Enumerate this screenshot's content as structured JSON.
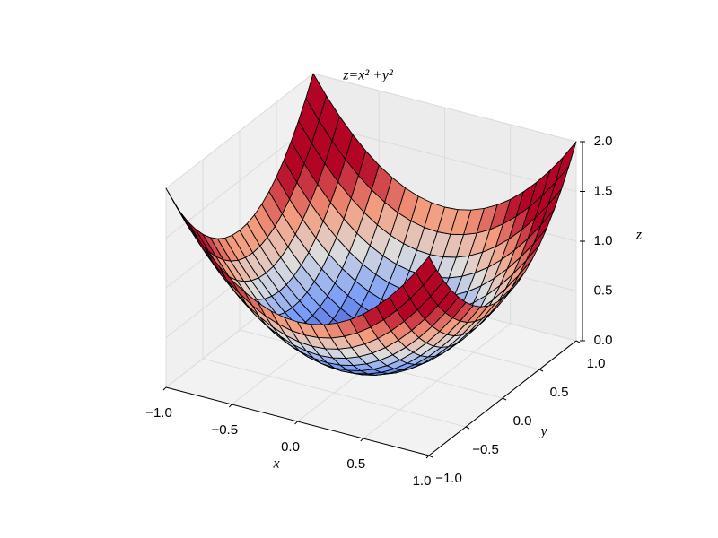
{
  "chart_data": {
    "type": "surface",
    "title": "z=x² +y²",
    "x_label": "x",
    "y_label": "y",
    "z_label": "z",
    "x": [
      -1,
      -0.9,
      -0.8,
      -0.7,
      -0.6,
      -0.5,
      -0.4,
      -0.3,
      -0.2,
      -0.1,
      0,
      0.1,
      0.2,
      0.3,
      0.4,
      0.5,
      0.6,
      0.7,
      0.8,
      0.9,
      1
    ],
    "y": [
      -1,
      -0.9,
      -0.8,
      -0.7,
      -0.6,
      -0.5,
      -0.4,
      -0.3,
      -0.2,
      -0.1,
      0,
      0.1,
      0.2,
      0.3,
      0.4,
      0.5,
      0.6,
      0.7,
      0.8,
      0.9,
      1
    ],
    "z": [
      [
        2,
        1.81,
        1.64,
        1.49,
        1.36,
        1.25,
        1.16,
        1.09,
        1.04,
        1.01,
        1,
        1.01,
        1.04,
        1.09,
        1.16,
        1.25,
        1.36,
        1.49,
        1.64,
        1.81,
        2
      ],
      [
        1.81,
        1.62,
        1.45,
        1.3,
        1.17,
        1.06,
        0.97,
        0.9,
        0.85,
        0.82,
        0.81,
        0.82,
        0.85,
        0.9,
        0.97,
        1.06,
        1.17,
        1.3,
        1.45,
        1.62,
        1.81
      ],
      [
        1.64,
        1.45,
        1.28,
        1.13,
        1,
        0.89,
        0.8,
        0.73,
        0.68,
        0.65,
        0.64,
        0.65,
        0.68,
        0.73,
        0.8,
        0.89,
        1,
        1.13,
        1.28,
        1.45,
        1.64
      ],
      [
        1.49,
        1.3,
        1.13,
        0.98,
        0.85,
        0.74,
        0.65,
        0.58,
        0.53,
        0.5,
        0.49,
        0.5,
        0.53,
        0.58,
        0.65,
        0.74,
        0.85,
        0.98,
        1.13,
        1.3,
        1.49
      ],
      [
        1.36,
        1.17,
        1,
        0.85,
        0.72,
        0.61,
        0.52,
        0.45,
        0.4,
        0.37,
        0.36,
        0.37,
        0.4,
        0.45,
        0.52,
        0.61,
        0.72,
        0.85,
        1,
        1.17,
        1.36
      ],
      [
        1.25,
        1.06,
        0.89,
        0.74,
        0.61,
        0.5,
        0.41,
        0.34,
        0.29,
        0.26,
        0.25,
        0.26,
        0.29,
        0.34,
        0.41,
        0.5,
        0.61,
        0.74,
        0.89,
        1.06,
        1.25
      ],
      [
        1.16,
        0.97,
        0.8,
        0.65,
        0.52,
        0.41,
        0.32,
        0.25,
        0.2,
        0.17,
        0.16,
        0.17,
        0.2,
        0.25,
        0.32,
        0.41,
        0.52,
        0.65,
        0.8,
        0.97,
        1.16
      ],
      [
        1.09,
        0.9,
        0.73,
        0.58,
        0.45,
        0.34,
        0.25,
        0.18,
        0.13,
        0.1,
        0.09,
        0.1,
        0.13,
        0.18,
        0.25,
        0.34,
        0.45,
        0.58,
        0.73,
        0.9,
        1.09
      ],
      [
        1.04,
        0.85,
        0.68,
        0.53,
        0.4,
        0.29,
        0.2,
        0.13,
        0.08,
        0.05,
        0.04,
        0.05,
        0.08,
        0.13,
        0.2,
        0.29,
        0.4,
        0.53,
        0.68,
        0.85,
        1.04
      ],
      [
        1.01,
        0.82,
        0.65,
        0.5,
        0.37,
        0.26,
        0.17,
        0.1,
        0.05,
        0.02,
        0.01,
        0.02,
        0.05,
        0.1,
        0.17,
        0.26,
        0.37,
        0.5,
        0.65,
        0.82,
        1.01
      ],
      [
        1,
        0.81,
        0.64,
        0.49,
        0.36,
        0.25,
        0.16,
        0.09,
        0.04,
        0.01,
        0,
        0.01,
        0.04,
        0.09,
        0.16,
        0.25,
        0.36,
        0.49,
        0.64,
        0.81,
        1
      ],
      [
        1.01,
        0.82,
        0.65,
        0.5,
        0.37,
        0.26,
        0.17,
        0.1,
        0.05,
        0.02,
        0.01,
        0.02,
        0.05,
        0.1,
        0.17,
        0.26,
        0.37,
        0.5,
        0.65,
        0.82,
        1.01
      ],
      [
        1.04,
        0.85,
        0.68,
        0.53,
        0.4,
        0.29,
        0.2,
        0.13,
        0.08,
        0.05,
        0.04,
        0.05,
        0.08,
        0.13,
        0.2,
        0.29,
        0.4,
        0.53,
        0.68,
        0.85,
        1.04
      ],
      [
        1.09,
        0.9,
        0.73,
        0.58,
        0.45,
        0.34,
        0.25,
        0.18,
        0.13,
        0.1,
        0.09,
        0.1,
        0.13,
        0.18,
        0.25,
        0.34,
        0.45,
        0.58,
        0.73,
        0.9,
        1.09
      ],
      [
        1.16,
        0.97,
        0.8,
        0.65,
        0.52,
        0.41,
        0.32,
        0.25,
        0.2,
        0.17,
        0.16,
        0.17,
        0.2,
        0.25,
        0.32,
        0.41,
        0.52,
        0.65,
        0.8,
        0.97,
        1.16
      ],
      [
        1.25,
        1.06,
        0.89,
        0.74,
        0.61,
        0.5,
        0.41,
        0.34,
        0.29,
        0.26,
        0.25,
        0.26,
        0.29,
        0.34,
        0.41,
        0.5,
        0.61,
        0.74,
        0.89,
        1.06,
        1.25
      ],
      [
        1.36,
        1.17,
        1,
        0.85,
        0.72,
        0.61,
        0.52,
        0.45,
        0.4,
        0.37,
        0.36,
        0.37,
        0.4,
        0.45,
        0.52,
        0.61,
        0.72,
        0.85,
        1,
        1.17,
        1.36
      ],
      [
        1.49,
        1.3,
        1.13,
        0.98,
        0.85,
        0.74,
        0.65,
        0.58,
        0.53,
        0.5,
        0.49,
        0.5,
        0.53,
        0.58,
        0.65,
        0.74,
        0.85,
        0.98,
        1.13,
        1.3,
        1.49
      ],
      [
        1.64,
        1.45,
        1.28,
        1.13,
        1,
        0.89,
        0.8,
        0.73,
        0.68,
        0.65,
        0.64,
        0.65,
        0.68,
        0.73,
        0.8,
        0.89,
        1,
        1.13,
        1.28,
        1.45,
        1.64
      ],
      [
        1.81,
        1.62,
        1.45,
        1.3,
        1.17,
        1.06,
        0.97,
        0.9,
        0.85,
        0.82,
        0.81,
        0.82,
        0.85,
        0.9,
        0.97,
        1.06,
        1.17,
        1.3,
        1.45,
        1.62,
        1.81
      ],
      [
        2,
        1.81,
        1.64,
        1.49,
        1.36,
        1.25,
        1.16,
        1.09,
        1.04,
        1.01,
        1,
        1.01,
        1.04,
        1.09,
        1.16,
        1.25,
        1.36,
        1.49,
        1.64,
        1.81,
        2
      ]
    ],
    "colormap": "coolwarm",
    "xlim": [
      -1,
      1
    ],
    "ylim": [
      -1,
      1
    ],
    "zlim": [
      0,
      2
    ],
    "xticks": [
      {
        "value": -1,
        "label": "−1.0"
      },
      {
        "value": -0.5,
        "label": "−0.5"
      },
      {
        "value": 0,
        "label": "0.0"
      },
      0.5,
      {
        "value": 1,
        "label": "1.0"
      }
    ],
    "yticks": [
      {
        "value": -1,
        "label": "−1.0"
      },
      {
        "value": -0.5,
        "label": "−0.5"
      },
      {
        "value": 0,
        "label": "0.0"
      },
      0.5,
      {
        "value": 1,
        "label": "1.0"
      }
    ],
    "zticks": [
      {
        "value": 0,
        "label": "0.0"
      },
      0.5,
      {
        "value": 1,
        "label": "1.0"
      },
      1.5,
      {
        "value": 2,
        "label": "2.0"
      }
    ],
    "grid": true
  }
}
